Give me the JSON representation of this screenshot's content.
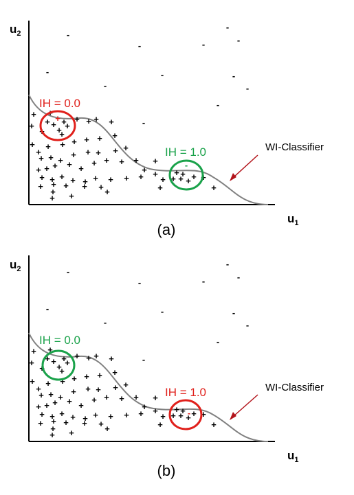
{
  "colors": {
    "red": "#e0201b",
    "green": "#1aa24a",
    "curve": "#808080",
    "dark_red": "#b3141b"
  },
  "panels": [
    {
      "caption": "(a)",
      "x_axis_label": "u",
      "x_axis_sub": "1",
      "y_axis_label": "u",
      "y_axis_sub": "2",
      "classifier_label": "WI-Classifier",
      "circle_left": {
        "label": "IH = 0.0",
        "color": "red"
      },
      "circle_right": {
        "label": "IH = 1.0",
        "color": "green"
      },
      "left_circle_mark": "+",
      "right_circle_mark": "-"
    },
    {
      "caption": "(b)",
      "x_axis_label": "u",
      "x_axis_sub": "1",
      "y_axis_label": "u",
      "y_axis_sub": "2",
      "classifier_label": "WI-Classifier",
      "circle_left": {
        "label": "IH = 0.0",
        "color": "green"
      },
      "circle_right": {
        "label": "IH = 1.0",
        "color": "red"
      },
      "left_circle_mark": "+",
      "right_circle_mark": "-"
    }
  ],
  "marks": {
    "plus": "+",
    "minus": "-"
  }
}
